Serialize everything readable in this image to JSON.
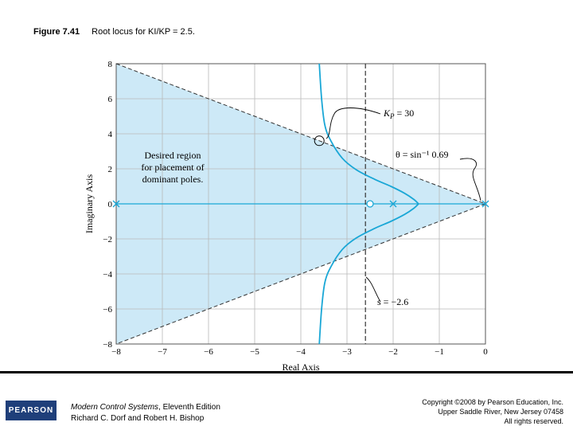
{
  "figure": {
    "number": "Figure 7.41",
    "caption": "Root locus for KI/KP = 2.5."
  },
  "chart_data": {
    "type": "line",
    "title": "",
    "xlabel": "Real Axis",
    "ylabel": "Imaginary Axis",
    "xlim": [
      -8,
      0
    ],
    "ylim": [
      -8,
      8
    ],
    "xticks": [
      -8,
      -7,
      -6,
      -5,
      -4,
      -3,
      -2,
      -1,
      0
    ],
    "yticks": [
      -8,
      -6,
      -4,
      -2,
      0,
      2,
      4,
      6,
      8
    ],
    "grid": true,
    "shaded_region": {
      "vertices": [
        [
          -8,
          8
        ],
        [
          0,
          0
        ],
        [
          -8,
          -8
        ]
      ],
      "label": "Desired region for placement of dominant poles.",
      "color": "#cde9f7"
    },
    "damping_lines": [
      [
        -8,
        8
      ],
      [
        0,
        0
      ],
      [
        -8,
        -8
      ]
    ],
    "vertical_line": {
      "x": -2.6,
      "label": "s = −2.6"
    },
    "poles": [
      [
        0,
        0
      ],
      [
        -2,
        0
      ],
      [
        -8,
        0
      ]
    ],
    "zeros": [
      [
        -2.5,
        0
      ]
    ],
    "selected_point": {
      "x": -3.6,
      "y": 3.6,
      "label": "KP = 30"
    },
    "theta_label": "θ = sin⁻¹ 0.69",
    "series": [
      {
        "x": [
          -3.6,
          -3.55,
          -3.48,
          -3.35,
          -3.1,
          -2.8,
          -2.4,
          -2.05,
          -1.75,
          -1.55,
          -1.45
        ],
        "y": [
          8.0,
          6.0,
          4.5,
          3.6,
          2.6,
          1.95,
          1.4,
          1.0,
          0.6,
          0.25,
          0.0
        ]
      },
      {
        "x": [
          -1.45,
          -1.55,
          -1.75,
          -2.05,
          -2.4,
          -2.8,
          -3.1,
          -3.35,
          -3.48,
          -3.55,
          -3.6
        ],
        "y": [
          0.0,
          -0.25,
          -0.6,
          -1.0,
          -1.4,
          -1.95,
          -2.6,
          -3.6,
          -4.5,
          -6.0,
          -8.0
        ]
      }
    ],
    "colors": {
      "locus": "#1aa7d6",
      "region": "#cde9f7",
      "grid": "#b8b8b8",
      "dashed": "#333333"
    }
  },
  "footer": {
    "logo_text": "PEARSON",
    "book_title": "Modern Control Systems",
    "edition": ", Eleventh Edition",
    "authors": "Richard C. Dorf and Robert H. Bishop",
    "copyright_1": "Copyright ©2008 by Pearson Education, Inc.",
    "copyright_2": "Upper Saddle River, New Jersey 07458",
    "copyright_3": "All rights reserved."
  }
}
